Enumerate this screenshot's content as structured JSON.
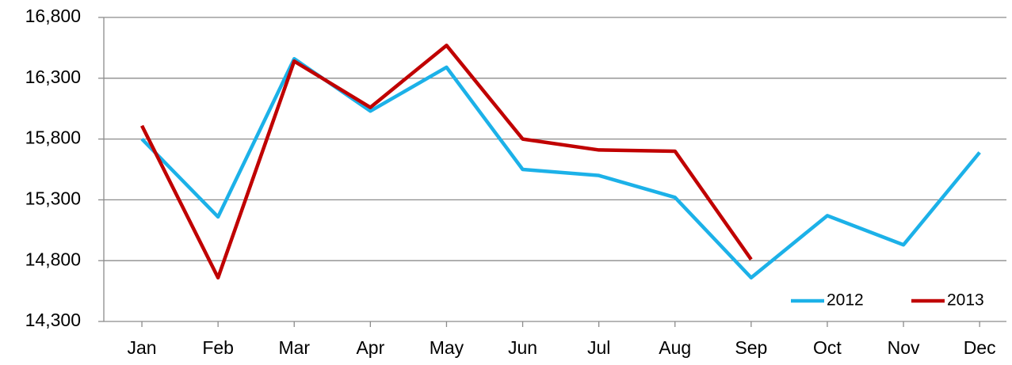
{
  "chart_data": {
    "type": "line",
    "categories": [
      "Jan",
      "Feb",
      "Mar",
      "Apr",
      "May",
      "Jun",
      "Jul",
      "Aug",
      "Sep",
      "Oct",
      "Nov",
      "Dec"
    ],
    "series": [
      {
        "name": "2012",
        "color": "#1cb1e8",
        "values": [
          15800,
          15160,
          16460,
          16030,
          16390,
          15550,
          15500,
          15320,
          14660,
          15170,
          14930,
          15690
        ]
      },
      {
        "name": "2013",
        "color": "#c00000",
        "values": [
          15910,
          14660,
          16440,
          16060,
          16570,
          15800,
          15710,
          15700,
          14810,
          null,
          null,
          null
        ]
      }
    ],
    "ylim": [
      14300,
      16800
    ],
    "yticks": [
      {
        "value": 14300,
        "label": "14,300"
      },
      {
        "value": 14800,
        "label": "14,800"
      },
      {
        "value": 15300,
        "label": "15,300"
      },
      {
        "value": 15800,
        "label": "15,800"
      },
      {
        "value": 16300,
        "label": "16,300"
      },
      {
        "value": 16800,
        "label": "16,800"
      }
    ],
    "grid": true,
    "legend": "lower right"
  }
}
